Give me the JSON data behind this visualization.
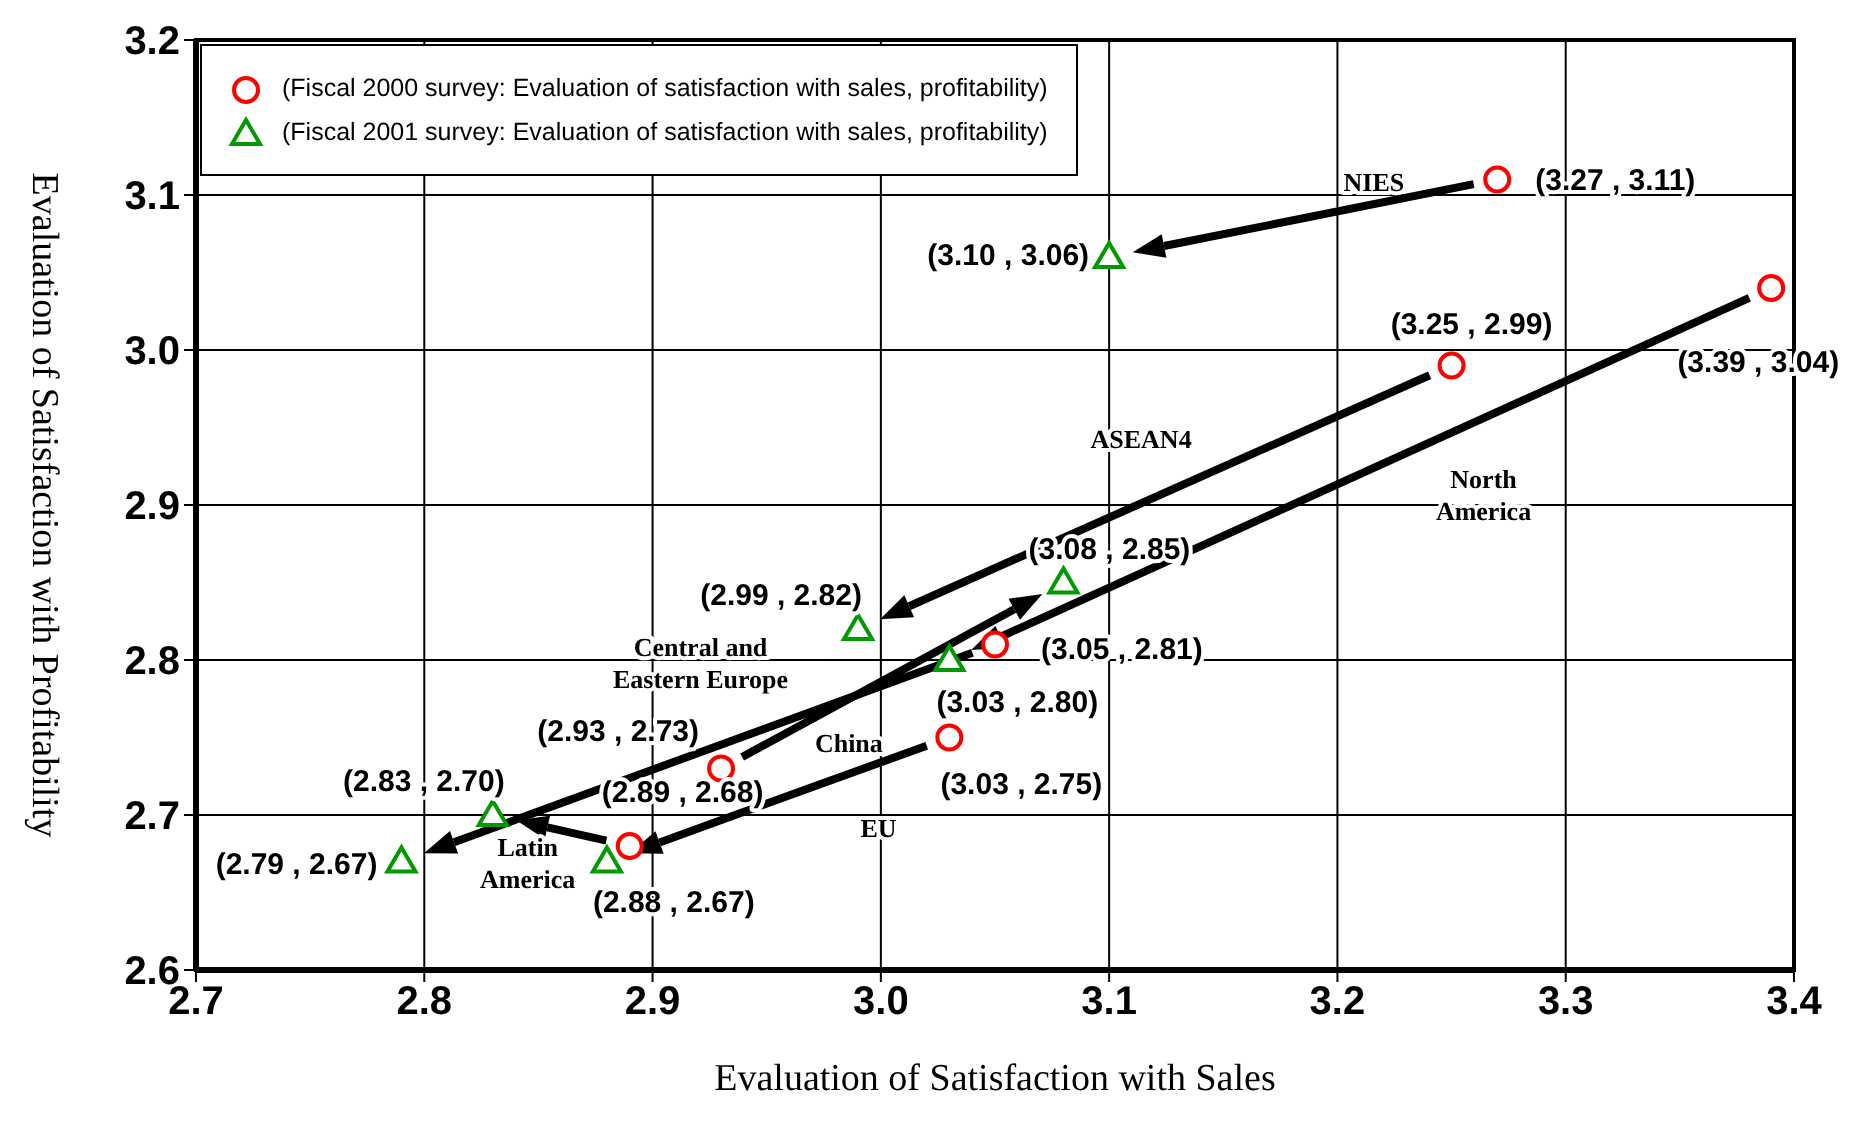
{
  "chart_data": {
    "type": "scatter",
    "xlabel": "Evaluation of Satisfaction with Sales",
    "ylabel": "Evaluation of Satisfaction with Profitability",
    "xlim": [
      2.7,
      3.4
    ],
    "xticks": [
      {
        "value": 2.7,
        "label": "2.7"
      },
      {
        "value": 2.8,
        "label": "2.8"
      },
      {
        "value": 2.9,
        "label": "2.9"
      },
      {
        "value": 3.0,
        "label": "3.0"
      },
      {
        "value": 3.1,
        "label": "3.1"
      },
      {
        "value": 3.2,
        "label": "3.2"
      },
      {
        "value": 3.3,
        "label": "3.3"
      },
      {
        "value": 3.4,
        "label": "3.4"
      }
    ],
    "ylim": [
      2.6,
      3.2
    ],
    "yticks": [
      {
        "value": 2.6,
        "label": "2.6"
      },
      {
        "value": 2.7,
        "label": "2.7"
      },
      {
        "value": 2.8,
        "label": "2.8"
      },
      {
        "value": 2.9,
        "label": "2.9"
      },
      {
        "value": 3.0,
        "label": "3.0"
      },
      {
        "value": 3.1,
        "label": "3.1"
      },
      {
        "value": 3.2,
        "label": "3.2"
      }
    ],
    "grid": true,
    "legend": "top left",
    "series": [
      {
        "name": "(Fiscal 2000 survey: Evaluation of satisfaction with sales, profitability)",
        "color": "#ff0000",
        "marker": "circle",
        "x": [
          3.27,
          3.39,
          3.25,
          2.93,
          3.05,
          3.03,
          2.89
        ],
        "values": [
          3.11,
          3.04,
          2.99,
          2.73,
          2.81,
          2.75,
          2.68
        ]
      },
      {
        "name": "(Fiscal 2001 survey: Evaluation of satisfaction with sales, profitability)",
        "color": "#009900",
        "marker": "triangle",
        "x": [
          3.1,
          3.03,
          2.99,
          3.08,
          2.79,
          2.88,
          2.83
        ],
        "values": [
          3.06,
          2.8,
          2.82,
          2.85,
          2.67,
          2.67,
          2.7
        ]
      }
    ],
    "annotations": [
      {
        "text": "(3.27 , 3.11)",
        "x": 3.27,
        "y": 3.11
      },
      {
        "text": "(3.10 , 3.06)",
        "x": 3.1,
        "y": 3.06
      },
      {
        "text": "(3.39 , 3.04)",
        "x": 3.39,
        "y": 3.04
      },
      {
        "text": "(3.25 , 2.99)",
        "x": 3.25,
        "y": 2.99
      },
      {
        "text": "(2.99 , 2.82)",
        "x": 2.99,
        "y": 2.82
      },
      {
        "text": "(3.08 , 2.85)",
        "x": 3.08,
        "y": 2.85
      },
      {
        "text": "(3.05 , 2.81)",
        "x": 3.05,
        "y": 2.81
      },
      {
        "text": "(3.03 , 2.80)",
        "x": 3.03,
        "y": 2.8
      },
      {
        "text": "(2.93 , 2.73)",
        "x": 2.93,
        "y": 2.73
      },
      {
        "text": "(3.03 , 2.75)",
        "x": 3.03,
        "y": 2.75
      },
      {
        "text": "(2.83 , 2.70)",
        "x": 2.83,
        "y": 2.7
      },
      {
        "text": "(2.89 , 2.68)",
        "x": 2.89,
        "y": 2.68
      },
      {
        "text": "(2.79 , 2.67)",
        "x": 2.79,
        "y": 2.67
      },
      {
        "text": "(2.88 , 2.67)",
        "x": 2.88,
        "y": 2.67
      },
      "NIES",
      "ASEAN4",
      "North\nAmerica",
      "Central and\nEastern Europe",
      "China",
      "EU",
      {
        "text": "Latin\nAmerica",
        "x": 2.89,
        "y": 2.68
      }
    ]
  }
}
